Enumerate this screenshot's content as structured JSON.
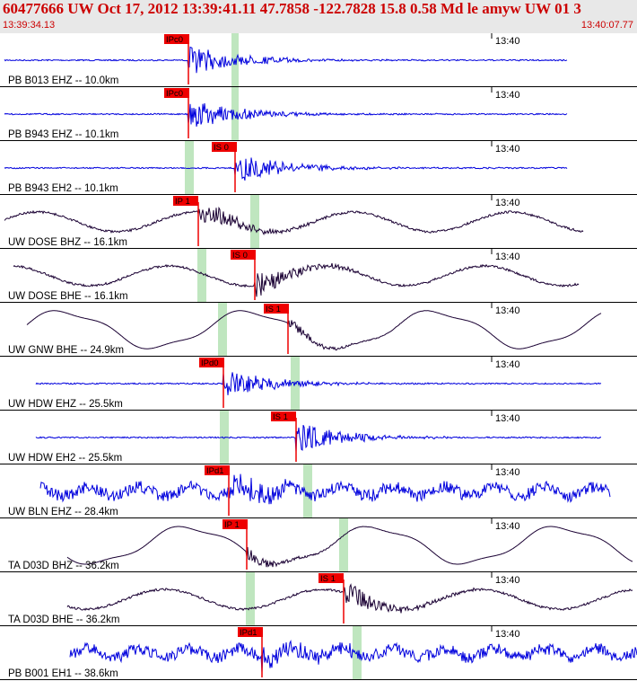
{
  "header": {
    "title": "60477666 UW Oct 17, 2012 13:39:41.11    47.7858 -122.7828 15.8 0.58 Md le amyw UW 01    3",
    "start_time": "13:39:34.13",
    "end_time": "13:40:07.77"
  },
  "colors": {
    "trace_blue": "#0000dd",
    "trace_dark": "#1a0033",
    "pick_red": "#ee0000",
    "window_green": "#bfe6bf",
    "header_bg": "#e8e8e8",
    "header_text": "#cc0000"
  },
  "time_tick": "13:40",
  "traces": [
    {
      "label": "PB B013 EHZ -- 10.0km",
      "pick": "IPc0",
      "style": "seismic"
    },
    {
      "label": "PB B943 EHZ -- 10.1km",
      "pick": "IPc0",
      "style": "seismic"
    },
    {
      "label": "PB B943 EH2 -- 10.1km",
      "pick": "IS 0",
      "style": "seismic"
    },
    {
      "label": "UW DOSE BHZ -- 16.1km",
      "pick": "IP 1",
      "style": "wavy"
    },
    {
      "label": "UW DOSE BHE -- 16.1km",
      "pick": "IS 0",
      "style": "wavy"
    },
    {
      "label": "UW GNW BHE -- 24.9km",
      "pick": "IS 1",
      "style": "slowwave"
    },
    {
      "label": "UW HDW EHZ -- 25.5km",
      "pick": "IPd0",
      "style": "seismic"
    },
    {
      "label": "UW HDW EH2 -- 25.5km",
      "pick": "IS 1",
      "style": "seismic"
    },
    {
      "label": "UW BLN EHZ -- 28.4km",
      "pick": "IPd1",
      "style": "noisy"
    },
    {
      "label": "TA D03D BHZ -- 36.2km",
      "pick": "IP 1",
      "style": "slowwave"
    },
    {
      "label": "TA D03D BHE -- 36.2km",
      "pick": "IS 1",
      "style": "wavy"
    },
    {
      "label": "PB B001 EH1 -- 38.6km",
      "pick": "IPd1",
      "style": "noisy"
    }
  ]
}
